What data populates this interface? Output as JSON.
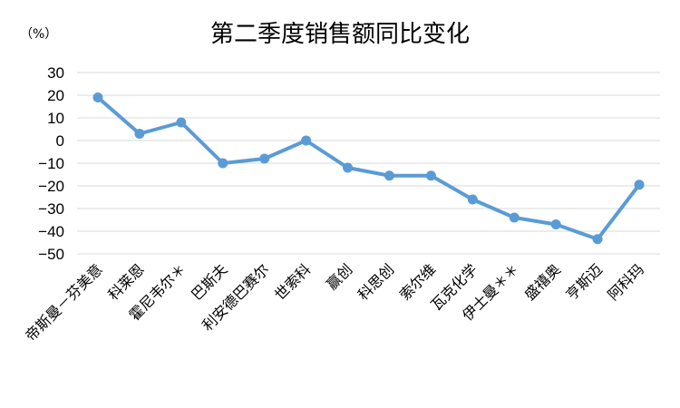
{
  "chart_data": {
    "type": "line",
    "title": "第二季度销售额同比变化",
    "unit_label": "（%）",
    "categories": [
      "帝斯曼－芬美意",
      "科莱恩",
      "霍尼韦尔＊",
      "巴斯夫",
      "利安德巴赛尔",
      "世索科",
      "赢创",
      "科思创",
      "索尔维",
      "瓦克化学",
      "伊士曼＊＊",
      "盛禧奥",
      "亨斯迈",
      "阿科玛"
    ],
    "series": [
      {
        "values": [
          19,
          3,
          8,
          -10,
          -8,
          0,
          -12,
          -15.5,
          -15.5,
          -26,
          -34,
          -37,
          -43.5,
          -19.5
        ]
      }
    ],
    "ylim": [
      -50,
      30
    ],
    "yticks": [
      30,
      20,
      10,
      0,
      -10,
      -20,
      -30,
      -40,
      -50
    ],
    "grid": true,
    "legend": "none",
    "colors": {
      "line": "#5b9bd5",
      "marker": "#5b9bd5"
    }
  }
}
